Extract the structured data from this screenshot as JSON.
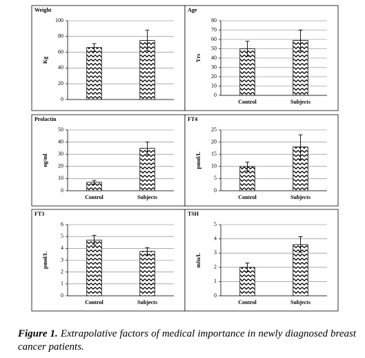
{
  "chart_data": [
    {
      "type": "bar",
      "title": "Weight",
      "ylabel": "Kg",
      "categories": [
        null,
        null
      ],
      "values": [
        66,
        75
      ],
      "errors": [
        5,
        13
      ],
      "ylim": [
        0,
        100
      ],
      "yticks": [
        0,
        20,
        40,
        60,
        80,
        100
      ],
      "grid": true
    },
    {
      "type": "bar",
      "title": "Age",
      "ylabel": "Yrs",
      "categories": [
        "Control",
        "Subjects"
      ],
      "values": [
        50,
        59
      ],
      "errors": [
        8,
        11
      ],
      "ylim": [
        0,
        80
      ],
      "yticks": [
        0,
        10,
        20,
        30,
        40,
        50,
        60,
        70,
        80
      ],
      "grid": true
    },
    {
      "type": "bar",
      "title": "Prolactin",
      "ylabel": "ng/ml",
      "categories": [
        "Control",
        "Subjects"
      ],
      "values": [
        7,
        35
      ],
      "errors": [
        1.5,
        5
      ],
      "ylim": [
        0,
        50
      ],
      "yticks": [
        0,
        10,
        20,
        30,
        40,
        50
      ],
      "grid": true
    },
    {
      "type": "bar",
      "title": "FT4",
      "ylabel": "pmol/L",
      "categories": [
        "Control",
        "Subjects"
      ],
      "values": [
        10,
        18
      ],
      "errors": [
        1.8,
        5
      ],
      "ylim": [
        0,
        25
      ],
      "yticks": [
        0,
        5,
        10,
        15,
        20,
        25
      ],
      "grid": true
    },
    {
      "type": "bar",
      "title": "FT3",
      "ylabel": "pmol/L",
      "categories": [
        "Control",
        "Subjects"
      ],
      "values": [
        4.7,
        3.75
      ],
      "errors": [
        0.4,
        0.3
      ],
      "ylim": [
        0,
        6
      ],
      "yticks": [
        0,
        1,
        2,
        3,
        4,
        5,
        6
      ],
      "grid": true
    },
    {
      "type": "bar",
      "title": "TSH",
      "ylabel": "mIu/L",
      "categories": [
        "Control",
        "Subjects"
      ],
      "values": [
        2,
        3.6
      ],
      "errors": [
        0.3,
        0.55
      ],
      "ylim": [
        0,
        5
      ],
      "yticks": [
        0,
        1,
        2,
        3,
        4,
        5
      ],
      "grid": true
    }
  ],
  "caption": {
    "label": "Figure 1.",
    "text": "Extrapolative factors of medical importance in newly diagnosed breast cancer patients."
  }
}
